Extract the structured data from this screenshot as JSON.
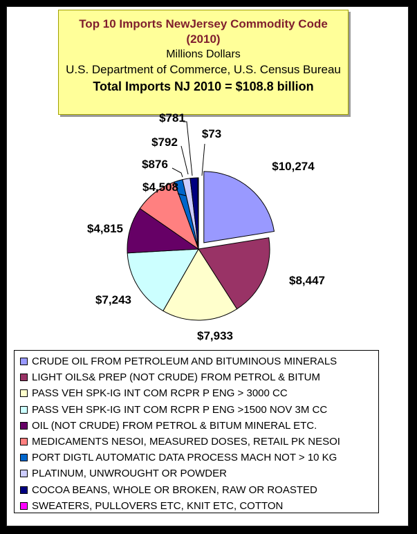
{
  "title": {
    "line1": "Top 10 Imports NewJersey Commodity Code",
    "line2": "(2010)",
    "line3": "Millions Dollars",
    "line4": "U.S. Department of Commerce, U.S. Census Bureau",
    "line5": "Total Imports NJ 2010 = $108.8 billion"
  },
  "chart_data": {
    "type": "pie",
    "title": "Top 10 Imports NewJersey Commodity Code (2010)",
    "exploded_slice": 0,
    "legend_position": "bottom",
    "slices": [
      {
        "label": "CRUDE OIL FROM PETROLEUM AND BITUMINOUS MINERALS",
        "value": 10274,
        "data_label": "$10,274",
        "color": "#9999ff"
      },
      {
        "label": "LIGHT OILS& PREP (NOT CRUDE) FROM PETROL & BITUM",
        "value": 8447,
        "data_label": "$8,447",
        "color": "#993366"
      },
      {
        "label": "PASS VEH SPK-IG INT COM RCPR P ENG > 3000 CC",
        "value": 7933,
        "data_label": "$7,933",
        "color": "#ffffcc"
      },
      {
        "label": "PASS VEH SPK-IG INT COM RCPR P ENG >1500 NOV 3M CC",
        "value": 7243,
        "data_label": "$7,243",
        "color": "#ccffff"
      },
      {
        "label": "OIL (NOT CRUDE) FROM PETROL & BITUM MINERAL ETC.",
        "value": 4815,
        "data_label": "$4,815",
        "color": "#660066"
      },
      {
        "label": "MEDICAMENTS NESOI, MEASURED DOSES, RETAIL PK NESOI",
        "value": 4508,
        "data_label": "$4,508",
        "color": "#ff8080"
      },
      {
        "label": "PORT DIGTL AUTOMATIC DATA PROCESS MACH NOT > 10 KG",
        "value": 876,
        "data_label": "$876",
        "color": "#0066cc"
      },
      {
        "label": "PLATINUM, UNWROUGHT OR POWDER",
        "value": 792,
        "data_label": "$792",
        "color": "#ccccff"
      },
      {
        "label": "COCOA BEANS, WHOLE OR BROKEN, RAW OR ROASTED",
        "value": 781,
        "data_label": "$781",
        "color": "#000080"
      },
      {
        "label": "SWEATERS, PULLOVERS ETC, KNIT ETC, COTTON",
        "value": 73,
        "data_label": "$73",
        "color": "#ff00ff"
      }
    ]
  }
}
